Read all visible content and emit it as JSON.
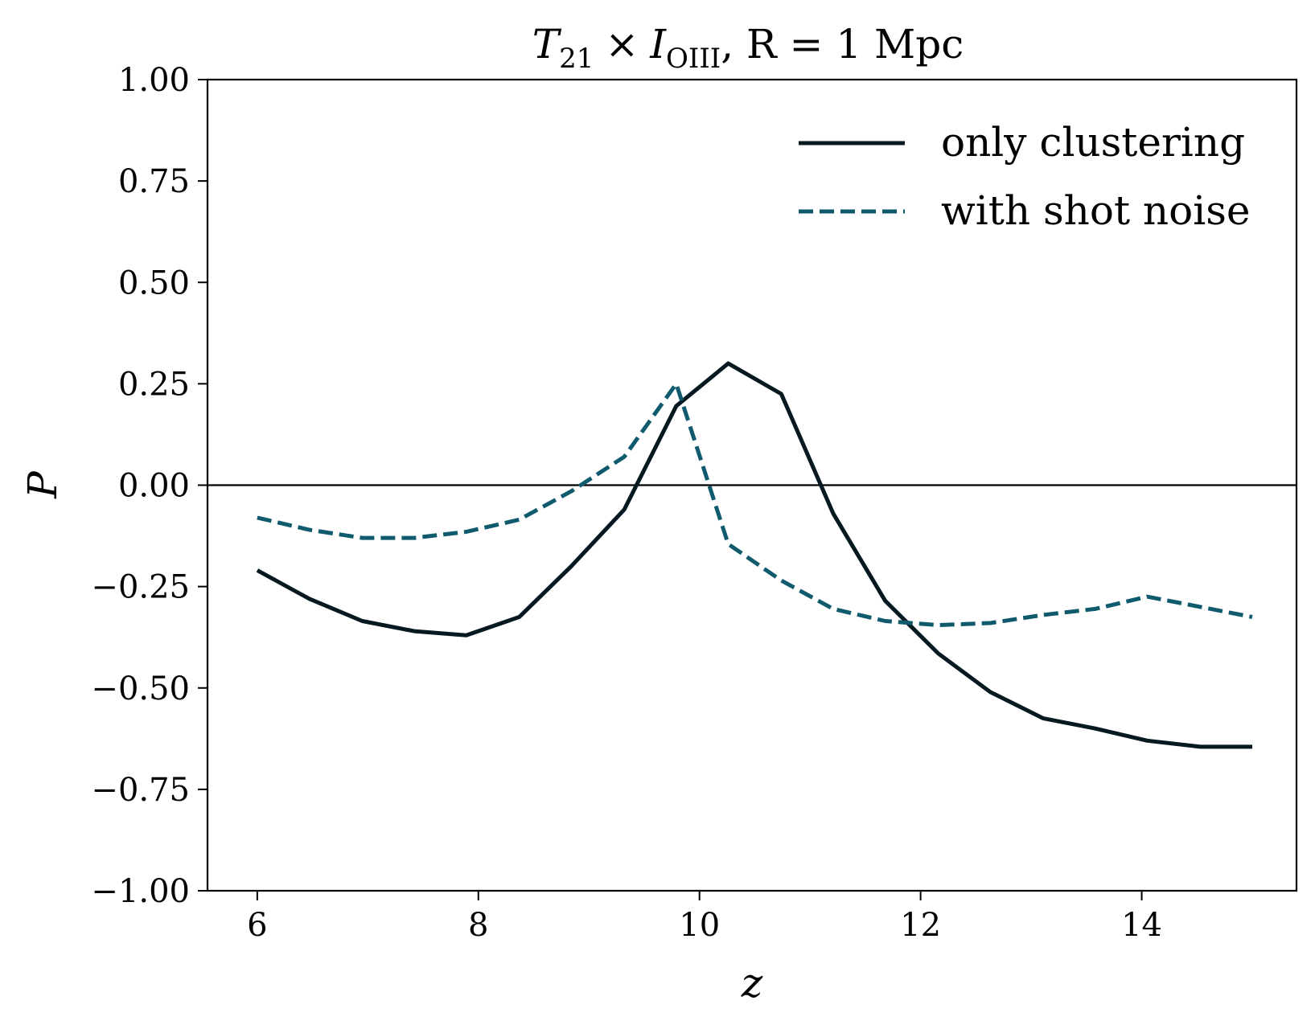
{
  "chart_data": {
    "type": "line",
    "title": {
      "t_base": "T",
      "t_sub": "21",
      "times": "×",
      "i_base": "I",
      "i_sub": "OIII",
      "rest": ", R = 1 Mpc"
    },
    "xlabel": "z",
    "ylabel": "P",
    "xlim": [
      5.55,
      15.4
    ],
    "ylim": [
      -1.0,
      1.0
    ],
    "xticks": [
      6,
      8,
      10,
      12,
      14
    ],
    "xtick_labels": [
      "6",
      "8",
      "10",
      "12",
      "14"
    ],
    "yticks": [
      1.0,
      0.75,
      0.5,
      0.25,
      0.0,
      -0.25,
      -0.5,
      -0.75,
      -1.0
    ],
    "ytick_labels": [
      "1.00",
      "0.75",
      "0.50",
      "0.25",
      "0.00",
      "−0.25",
      "−0.50",
      "−0.75",
      "−1.00"
    ],
    "hline": 0.0,
    "grid": false,
    "legend_position": "upper-right",
    "series": [
      {
        "name": "only clustering",
        "color": "#061820",
        "style": "solid",
        "x": [
          6.0,
          6.47,
          6.95,
          7.42,
          7.89,
          8.37,
          8.84,
          9.32,
          9.79,
          10.26,
          10.74,
          11.21,
          11.68,
          12.16,
          12.63,
          13.11,
          13.58,
          14.05,
          14.53,
          15.0
        ],
        "y": [
          -0.21,
          -0.28,
          -0.335,
          -0.36,
          -0.37,
          -0.325,
          -0.2,
          -0.06,
          0.195,
          0.3,
          0.225,
          -0.07,
          -0.285,
          -0.415,
          -0.51,
          -0.575,
          -0.6,
          -0.63,
          -0.645,
          -0.645
        ]
      },
      {
        "name": "with shot noise",
        "color": "#0f5b6d",
        "style": "dashed",
        "x": [
          6.0,
          6.47,
          6.95,
          7.42,
          7.89,
          8.37,
          8.84,
          9.32,
          9.79,
          10.26,
          10.74,
          11.21,
          11.68,
          12.16,
          12.63,
          13.11,
          13.58,
          14.05,
          14.53,
          15.0
        ],
        "y": [
          -0.08,
          -0.11,
          -0.13,
          -0.13,
          -0.115,
          -0.085,
          -0.015,
          0.07,
          0.25,
          -0.145,
          -0.235,
          -0.305,
          -0.335,
          -0.345,
          -0.34,
          -0.32,
          -0.305,
          -0.275,
          -0.3,
          -0.325
        ]
      }
    ]
  }
}
